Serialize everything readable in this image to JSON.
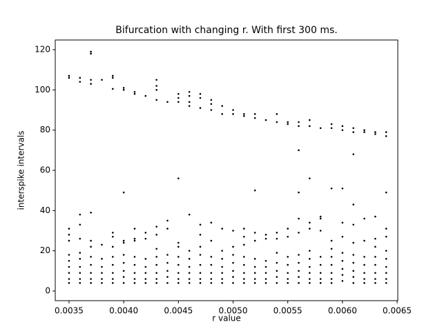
{
  "chart_data": {
    "type": "scatter",
    "title": "Bifurcation with changing r. With first 300 ms.",
    "x_label": "r value",
    "y_label": "interspike intervals",
    "color": "#000000",
    "xlim": [
      0.003374,
      0.006506
    ],
    "ylim": [
      -4.8,
      124.8
    ],
    "xticks": [
      0.0035,
      {
        "value": 0.004,
        "label": "0.0040"
      },
      0.0045,
      {
        "value": 0.005,
        "label": "0.0050"
      },
      0.0055,
      {
        "value": 0.006,
        "label": "0.0060"
      },
      0.0065
    ],
    "yticks": [
      0,
      20,
      40,
      60,
      80,
      100,
      120
    ],
    "columns": [
      {
        "x": 0.0035,
        "values": [
          106,
          107,
          31,
          28,
          25,
          18,
          15,
          12,
          9,
          6,
          4
        ]
      },
      {
        "x": 0.0036,
        "values": [
          104,
          106,
          38,
          33,
          26,
          19,
          16,
          12,
          9,
          6,
          4
        ]
      },
      {
        "x": 0.0037,
        "values": [
          103,
          105,
          118,
          119,
          39,
          25,
          22,
          17,
          13,
          9,
          6,
          4
        ]
      },
      {
        "x": 0.0038,
        "values": [
          105,
          23,
          16,
          12,
          9,
          6,
          4
        ]
      },
      {
        "x": 0.0039,
        "values": [
          100.5,
          106,
          107,
          29,
          27,
          22,
          17,
          13,
          9,
          6,
          4
        ]
      },
      {
        "x": 0.004,
        "values": [
          100,
          101,
          49,
          25,
          24,
          18,
          14,
          10,
          7,
          4
        ]
      },
      {
        "x": 0.0041,
        "values": [
          98,
          99,
          31,
          26,
          25,
          17,
          13,
          9,
          6,
          4
        ]
      },
      {
        "x": 0.0042,
        "values": [
          97,
          29,
          26,
          16,
          12,
          9,
          6,
          4
        ]
      },
      {
        "x": 0.0043,
        "values": [
          95,
          100,
          102,
          105,
          32,
          28,
          21,
          17,
          13,
          9,
          6,
          4
        ]
      },
      {
        "x": 0.0044,
        "values": [
          94,
          35,
          31,
          18,
          14,
          10,
          7,
          4
        ]
      },
      {
        "x": 0.0045,
        "values": [
          94,
          96,
          98,
          56,
          24,
          22,
          17,
          13,
          9,
          6,
          4
        ]
      },
      {
        "x": 0.0046,
        "values": [
          92,
          94,
          97,
          99,
          38,
          20,
          16,
          12,
          9,
          6,
          4
        ]
      },
      {
        "x": 0.0047,
        "values": [
          91,
          96,
          98,
          33,
          28,
          22,
          18,
          13,
          9,
          6,
          4
        ]
      },
      {
        "x": 0.0048,
        "values": [
          90,
          93,
          95,
          34,
          25,
          17,
          13,
          9,
          6,
          4
        ]
      },
      {
        "x": 0.0049,
        "values": [
          88,
          92,
          31,
          20,
          16,
          12,
          9,
          6,
          4
        ]
      },
      {
        "x": 0.005,
        "values": [
          88,
          90,
          30,
          22,
          18,
          14,
          10,
          7,
          4
        ]
      },
      {
        "x": 0.0051,
        "values": [
          87,
          88,
          31,
          27,
          23,
          17,
          13,
          9,
          6,
          4
        ]
      },
      {
        "x": 0.0052,
        "values": [
          86,
          88,
          50,
          29,
          25,
          16,
          12,
          9,
          6,
          4
        ]
      },
      {
        "x": 0.0053,
        "values": [
          85,
          28,
          26,
          15,
          12,
          9,
          6,
          4
        ]
      },
      {
        "x": 0.0054,
        "values": [
          84,
          88,
          29,
          26,
          19,
          14,
          10,
          7,
          4
        ]
      },
      {
        "x": 0.0055,
        "values": [
          83,
          84,
          31,
          27,
          17,
          13,
          9,
          6,
          4
        ]
      },
      {
        "x": 0.0056,
        "values": [
          82,
          84,
          70,
          49,
          36,
          29,
          18,
          14,
          10,
          7,
          4
        ]
      },
      {
        "x": 0.0057,
        "values": [
          82,
          85,
          56,
          34,
          31,
          20,
          16,
          12,
          9,
          6,
          4
        ]
      },
      {
        "x": 0.0058,
        "values": [
          81,
          37,
          36,
          30,
          17,
          13,
          9,
          6,
          4
        ]
      },
      {
        "x": 0.0059,
        "values": [
          81,
          83,
          51,
          25,
          21,
          17,
          13,
          9,
          6,
          4
        ]
      },
      {
        "x": 0.006,
        "values": [
          80,
          82,
          51,
          34,
          27,
          19,
          15,
          11,
          8,
          5
        ]
      },
      {
        "x": 0.0061,
        "values": [
          79,
          81,
          68,
          43,
          33,
          24,
          18,
          14,
          10,
          7,
          4
        ]
      },
      {
        "x": 0.0062,
        "values": [
          79,
          80,
          36,
          25,
          17,
          13,
          9,
          6,
          4
        ]
      },
      {
        "x": 0.0063,
        "values": [
          78,
          79,
          37,
          26,
          22,
          17,
          13,
          9,
          6,
          4
        ]
      },
      {
        "x": 0.0064,
        "values": [
          77,
          79,
          49,
          31,
          27,
          20,
          16,
          12,
          9,
          6,
          4
        ]
      }
    ]
  }
}
